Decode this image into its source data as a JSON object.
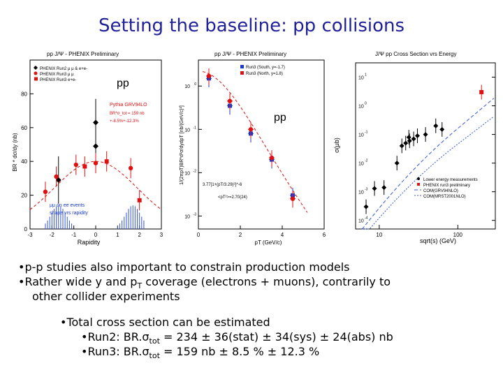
{
  "slide": {
    "title": "Setting the baseline: pp collisions",
    "bullets": {
      "b1": "p-p studies also important to constrain production models",
      "b2_pre": "Rather wide y and p",
      "b2_sub": "T",
      "b2_post": " coverage (electrons + muons), contrarily to",
      "b2_cont": "other collider experiments",
      "b3": "Total cross section can be estimated",
      "run2_pre": "Run2: BR.",
      "run2_sigma": "σ",
      "run2_sub": "tot",
      "run2_post": " = 234 ± 36(stat) ± 34(sys) ± 24(abs) nb",
      "run3_pre": "Run3: BR.",
      "run3_sigma": "σ",
      "run3_sub": "tot",
      "run3_post": " = 159 nb ± 8.5 % ± 12.3 %"
    }
  },
  "chart_data": [
    {
      "type": "scatter",
      "title": "pp J/Ψ - PHENIX Preliminary",
      "xlabel": "Rapidity",
      "ylabel": "BR * dσ/dy (nb)",
      "xlim": [
        -3,
        3
      ],
      "ylim": [
        0,
        100
      ],
      "xticks": [
        "-3",
        "-2",
        "-1",
        "0",
        "1",
        "2",
        "3"
      ],
      "yticks": [
        "0",
        "20",
        "40",
        "60",
        "80"
      ],
      "big_label": "pp",
      "legend": [
        "PHENIX Run2 μ μ & e+e-",
        "PHENIX Run3 μ μ",
        "PHENIX Run3 e+e-"
      ],
      "annotations": [
        "Pythia GRV94LO",
        "BR*σ_tot = 159 nb",
        "+-8.5%+-12.3%",
        "μμ on ee events",
        "shape vrs rapidity"
      ],
      "series": [
        {
          "name": "PHENIX Run2",
          "color": "#000000",
          "x": [
            -1.7,
            0,
            0
          ],
          "y": [
            29,
            49,
            63
          ]
        },
        {
          "name": "PHENIX Run3 mumu",
          "color": "#dd1111",
          "x": [
            -2.3,
            -1.8,
            -0.9,
            0,
            1.6
          ],
          "y": [
            22,
            31,
            38,
            39,
            36
          ]
        },
        {
          "name": "PHENIX Run3 ee",
          "color": "#dd1111",
          "x": [
            -0.5,
            0.5,
            2.0
          ],
          "y": [
            37,
            40,
            17
          ]
        }
      ]
    },
    {
      "type": "scatter",
      "title": "pp J/Ψ - PHENIX Preliminary",
      "xlabel": "pT (GeV/c)",
      "ylabel": "1/(2πpT)BR*d²σ/dydpT [nb/(GeV/c)²]",
      "xlim": [
        0,
        6
      ],
      "yscale": "log",
      "xticks": [
        "0",
        "2",
        "4",
        "6"
      ],
      "yticks": [
        "10^0",
        "10^-1",
        "10^-2",
        "10^-3"
      ],
      "big_label": "pp",
      "legend": [
        "Run3 (South, y=-1.7)",
        "Run3 (North, y=1.8)"
      ],
      "annotations": [
        "3.77[1+(pT/3.29)²]^-6",
        "<pT²>=2.70(24)"
      ],
      "series": [
        {
          "name": "Run3 (South, y=-1.7)",
          "color": "#1a3acc",
          "x": [
            0.5,
            1.5,
            2.5,
            3.5,
            4.5
          ],
          "y": [
            1.5,
            0.35,
            0.08,
            0.02,
            0.003
          ]
        },
        {
          "name": "Run3 (North, y=1.8)",
          "color": "#dd1111",
          "x": [
            0.5,
            1.5,
            2.5,
            3.5,
            4.5
          ],
          "y": [
            1.7,
            0.45,
            0.1,
            0.022,
            0.0025
          ]
        }
      ]
    },
    {
      "type": "scatter",
      "title": "J/Ψ pp Cross Section vrs Energy",
      "xlabel": "sqrt(s) (GeV)",
      "ylabel": "σ(μb)",
      "xscale": "log",
      "yscale": "log",
      "xticks": [
        "10",
        "100"
      ],
      "yticks": [
        "10^1",
        "10^0",
        "10^-1",
        "10^-2",
        "10^-3",
        "10^-4"
      ],
      "legend": [
        "Lower energy measurements",
        "PHENIX run3 preliminary",
        "COM(GRV94NLO)",
        "COM(MRST2001NLO)"
      ],
      "series": [
        {
          "name": "Lower energy measurements",
          "color": "#000000",
          "x": [
            6.8,
            8.7,
            11.5,
            16.8,
            19.4,
            21.7,
            23.8,
            24.3,
            27.4,
            30.6,
            38.8,
            52.4,
            63
          ],
          "y": [
            0.0003,
            0.0013,
            0.0014,
            0.01,
            0.04,
            0.05,
            0.08,
            0.06,
            0.07,
            0.09,
            0.1,
            0.2,
            0.15
          ]
        },
        {
          "name": "PHENIX run3 preliminary",
          "color": "#dd1111",
          "x": [
            200
          ],
          "y": [
            3.0
          ]
        }
      ]
    }
  ]
}
